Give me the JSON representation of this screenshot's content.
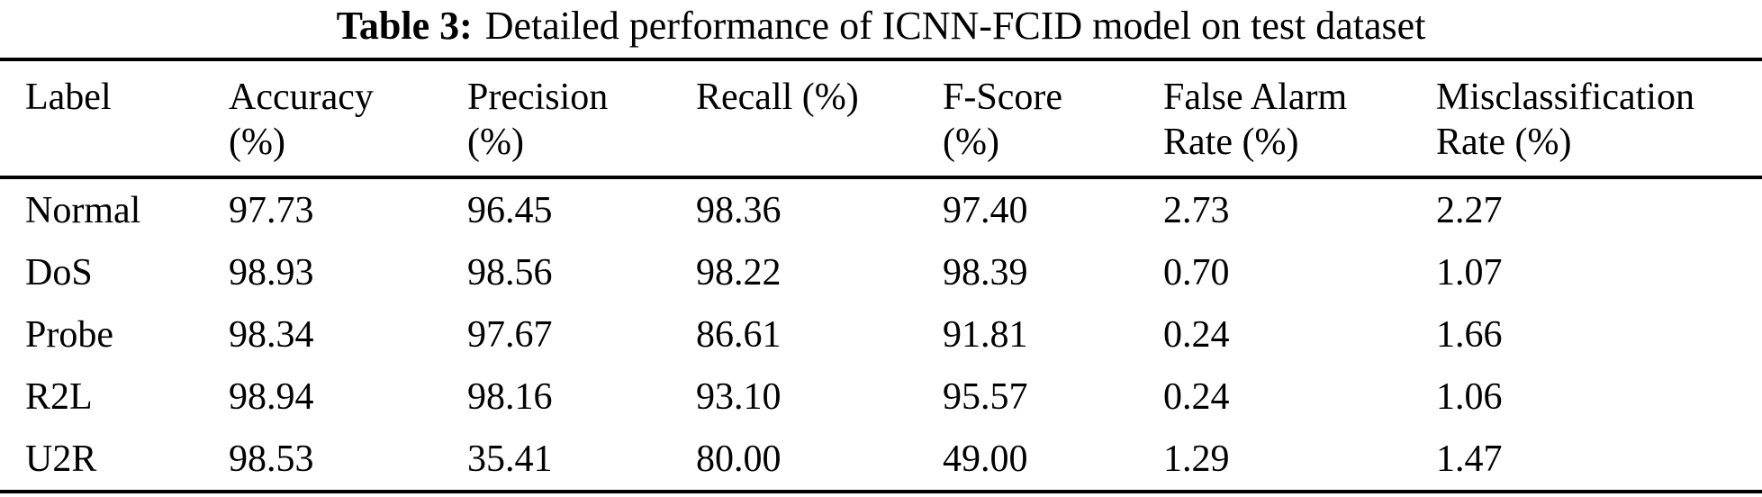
{
  "page": {
    "background": "#ffffff",
    "text_color": "#000000",
    "rule_color": "#000000"
  },
  "title": {
    "label": "Table 3:",
    "text": "Detailed performance of ICNN-FCID model on test dataset"
  },
  "table": {
    "headers": [
      "Label",
      "Accuracy\n(%)",
      "Precision\n(%)",
      "Recall (%)",
      "F-Score\n(%)",
      "False Alarm\nRate (%)",
      "Misclassification\nRate (%)"
    ],
    "rows": [
      {
        "cells": [
          "Normal",
          "97.73",
          "96.45",
          "98.36",
          "97.40",
          "2.73",
          "2.27"
        ]
      },
      {
        "cells": [
          "DoS",
          "98.93",
          "98.56",
          "98.22",
          "98.39",
          "0.70",
          "1.07"
        ]
      },
      {
        "cells": [
          "Probe",
          "98.34",
          "97.67",
          "86.61",
          "91.81",
          "0.24",
          "1.66"
        ]
      },
      {
        "cells": [
          "R2L",
          "98.94",
          "98.16",
          "93.10",
          "95.57",
          "0.24",
          "1.06"
        ]
      },
      {
        "cells": [
          "U2R",
          "98.53",
          "35.41",
          "80.00",
          "49.00",
          "1.29",
          "1.47"
        ]
      }
    ]
  },
  "chart_data": {
    "type": "table",
    "title": "Table 3: Detailed performance of ICNN-FCID model on test dataset",
    "columns": [
      "Label",
      "Accuracy (%)",
      "Precision (%)",
      "Recall (%)",
      "F-Score (%)",
      "False Alarm Rate (%)",
      "Misclassification Rate (%)"
    ],
    "rows": [
      [
        "Normal",
        97.73,
        96.45,
        98.36,
        97.4,
        2.73,
        2.27
      ],
      [
        "DoS",
        98.93,
        98.56,
        98.22,
        98.39,
        0.7,
        1.07
      ],
      [
        "Probe",
        98.34,
        97.67,
        86.61,
        91.81,
        0.24,
        1.66
      ],
      [
        "R2L",
        98.94,
        98.16,
        93.1,
        95.57,
        0.24,
        1.06
      ],
      [
        "U2R",
        98.53,
        35.41,
        80.0,
        49.0,
        1.29,
        1.47
      ]
    ]
  }
}
